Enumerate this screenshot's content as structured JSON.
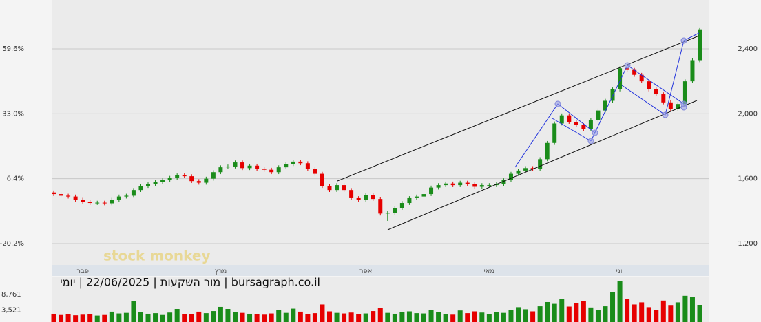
{
  "chart_data": {
    "type": "candlestick",
    "title": "bursagraph.co.il | מור השקעות | 22/06/2025 | יומי",
    "watermark": "stock monkey",
    "categories": [
      null,
      null,
      null,
      null,
      "פבר",
      null,
      null,
      null,
      null,
      null,
      null,
      null,
      null,
      null,
      null,
      null,
      null,
      null,
      null,
      null,
      null,
      null,
      null,
      "מרץ",
      null,
      null,
      null,
      null,
      null,
      null,
      null,
      null,
      null,
      null,
      null,
      null,
      null,
      null,
      null,
      null,
      null,
      null,
      null,
      "אפר",
      null,
      null,
      null,
      null,
      null,
      null,
      null,
      null,
      null,
      null,
      null,
      null,
      null,
      null,
      null,
      null,
      "מאי",
      null,
      null,
      null,
      null,
      null,
      null,
      null,
      null,
      null,
      null,
      null,
      null,
      null,
      null,
      null,
      null,
      null,
      "יוני",
      null,
      null,
      null,
      null,
      null,
      null,
      null,
      null,
      null,
      null,
      null
    ],
    "open": [
      1515,
      1505,
      1495,
      1490,
      1470,
      1455,
      1450,
      1452,
      1448,
      1470,
      1490,
      1495,
      1530,
      1555,
      1565,
      1580,
      1590,
      1605,
      1620,
      1615,
      1585,
      1575,
      1600,
      1640,
      1670,
      1675,
      1700,
      1665,
      1680,
      1660,
      1655,
      1640,
      1670,
      1690,
      1705,
      1695,
      1660,
      1630,
      1555,
      1530,
      1560,
      1530,
      1480,
      1470,
      1500,
      1475,
      1385,
      1390,
      1420,
      1450,
      1480,
      1490,
      1505,
      1545,
      1560,
      1570,
      1560,
      1575,
      1565,
      1550,
      1560,
      1560,
      1565,
      1590,
      1630,
      1650,
      1665,
      1660,
      1720,
      1820,
      1940,
      1990,
      1950,
      1930,
      1905,
      1960,
      2020,
      2080,
      2150,
      2280,
      2270,
      2240,
      2200,
      2150,
      2120,
      2070,
      2030,
      2060,
      2200,
      2330
    ],
    "high": [
      1527,
      1517,
      1507,
      1502,
      1482,
      1467,
      1464,
      1464,
      1482,
      1502,
      1507,
      1542,
      1567,
      1577,
      1592,
      1602,
      1617,
      1632,
      1632,
      1627,
      1597,
      1612,
      1652,
      1682,
      1687,
      1712,
      1712,
      1692,
      1692,
      1672,
      1667,
      1682,
      1702,
      1717,
      1717,
      1707,
      1672,
      1642,
      1567,
      1572,
      1572,
      1542,
      1492,
      1512,
      1512,
      1487,
      1402,
      1432,
      1462,
      1492,
      1502,
      1517,
      1557,
      1572,
      1582,
      1582,
      1587,
      1587,
      1577,
      1572,
      1572,
      1577,
      1602,
      1642,
      1662,
      1677,
      1677,
      1732,
      1832,
      1952,
      2002,
      2002,
      1962,
      1942,
      1972,
      2032,
      2092,
      2162,
      2292,
      2292,
      2282,
      2252,
      2212,
      2162,
      2132,
      2082,
      2072,
      2212,
      2342,
      2532
    ],
    "low": [
      1493,
      1483,
      1478,
      1458,
      1443,
      1438,
      1438,
      1436,
      1436,
      1458,
      1478,
      1483,
      1518,
      1543,
      1553,
      1568,
      1578,
      1593,
      1603,
      1573,
      1563,
      1563,
      1588,
      1628,
      1658,
      1663,
      1653,
      1653,
      1648,
      1643,
      1628,
      1628,
      1658,
      1678,
      1683,
      1648,
      1618,
      1543,
      1518,
      1518,
      1518,
      1468,
      1458,
      1458,
      1463,
      1373,
      1340,
      1378,
      1408,
      1438,
      1468,
      1478,
      1493,
      1533,
      1548,
      1548,
      1548,
      1553,
      1538,
      1538,
      1548,
      1548,
      1553,
      1578,
      1618,
      1638,
      1648,
      1648,
      1708,
      1808,
      1928,
      1938,
      1918,
      1893,
      1893,
      1948,
      2008,
      2068,
      2138,
      2258,
      2228,
      2188,
      2138,
      2108,
      2058,
      2018,
      2018,
      2048,
      2188,
      2318
    ],
    "close": [
      1505,
      1495,
      1490,
      1470,
      1455,
      1450,
      1452,
      1448,
      1470,
      1490,
      1495,
      1530,
      1555,
      1565,
      1580,
      1590,
      1605,
      1620,
      1615,
      1585,
      1575,
      1600,
      1640,
      1670,
      1675,
      1700,
      1665,
      1680,
      1660,
      1655,
      1640,
      1670,
      1690,
      1705,
      1695,
      1660,
      1630,
      1555,
      1530,
      1560,
      1530,
      1480,
      1470,
      1500,
      1475,
      1385,
      1390,
      1420,
      1450,
      1480,
      1490,
      1505,
      1545,
      1560,
      1570,
      1560,
      1575,
      1565,
      1550,
      1560,
      1560,
      1565,
      1590,
      1630,
      1650,
      1665,
      1660,
      1720,
      1820,
      1940,
      1990,
      1950,
      1930,
      1905,
      1960,
      2020,
      2080,
      2150,
      2280,
      2270,
      2240,
      2200,
      2150,
      2120,
      2070,
      2030,
      2060,
      2200,
      2330,
      2520
    ],
    "volume": [
      2300,
      1900,
      2100,
      1800,
      2000,
      2200,
      1700,
      1900,
      3000,
      2400,
      2600,
      6500,
      2800,
      2300,
      2500,
      1900,
      2700,
      3900,
      2100,
      2200,
      3000,
      2500,
      3200,
      4600,
      3900,
      2800,
      2600,
      2300,
      2200,
      2000,
      2400,
      3500,
      2600,
      4000,
      3000,
      2200,
      2500,
      5400,
      3100,
      2600,
      2400,
      2700,
      2200,
      2400,
      3200,
      4200,
      2600,
      2300,
      2800,
      3100,
      2500,
      2400,
      3600,
      2900,
      2200,
      2000,
      3400,
      2500,
      3100,
      2700,
      2200,
      2900,
      2600,
      3500,
      4500,
      3800,
      3100,
      4800,
      6200,
      5600,
      7300,
      4700,
      5800,
      6600,
      4400,
      3600,
      4800,
      9600,
      13300,
      7200,
      5400,
      6100,
      4500,
      3600,
      6700,
      5000,
      6100,
      8300,
      7800,
      5200
    ],
    "up_color": "#1a8c1a",
    "down_color": "#e60000",
    "ylim": [
      1077,
      2701
    ],
    "yticks": [
      {
        "value": 1200,
        "label": "1,200"
      },
      {
        "value": 1600,
        "label": "1,600"
      },
      {
        "value": 2000,
        "label": "2,000"
      },
      {
        "value": 2400,
        "label": "2,400"
      }
    ],
    "y2lim": [
      -28.4,
      79.6
    ],
    "y2ticks": [
      {
        "value": -20.2,
        "label": "-20.2%"
      },
      {
        "value": 6.4,
        "label": "6.4%"
      },
      {
        "value": 33.0,
        "label": "33.0%"
      },
      {
        "value": 59.6,
        "label": "59.6%"
      }
    ],
    "volume_ylim": [
      0,
      14000
    ],
    "volume_ticks": [
      {
        "value": 3521,
        "label": "3,521"
      },
      {
        "value": 8761,
        "label": "8,761"
      }
    ],
    "grid": true
  }
}
